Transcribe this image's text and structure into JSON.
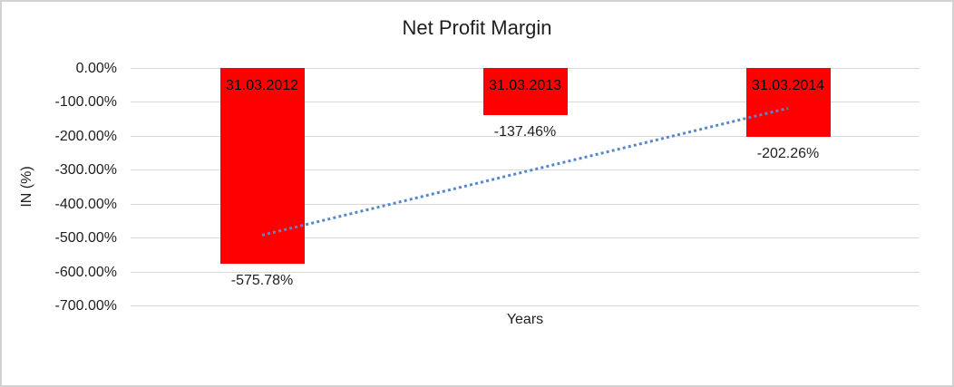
{
  "chart": {
    "title": "Net Profit Margin",
    "y_axis_title": "IN (%)",
    "x_axis_title": "Years"
  },
  "chart_data": {
    "type": "bar",
    "title": "Net Profit Margin",
    "xlabel": "Years",
    "ylabel": "IN (%)",
    "categories": [
      "31.03.2012",
      "31.03.2013",
      "31.03.2014"
    ],
    "values": [
      -575.78,
      -137.46,
      -202.26
    ],
    "data_labels": [
      "-575.78%",
      "-137.46%",
      "-202.26%"
    ],
    "ytick_labels": [
      "0.00%",
      "-100.00%",
      "-200.00%",
      "-300.00%",
      "-400.00%",
      "-500.00%",
      "-600.00%",
      "-700.00%"
    ],
    "ylim": [
      -700,
      0
    ],
    "grid": "horizontal",
    "legend_position": "none",
    "bar_color": "#ff0000",
    "gridline_color": "#d9d9d9",
    "trendline": {
      "type": "linear",
      "style": "dotted",
      "color": "#5588cc",
      "start_value": -491.9,
      "end_value": -118.4
    }
  }
}
